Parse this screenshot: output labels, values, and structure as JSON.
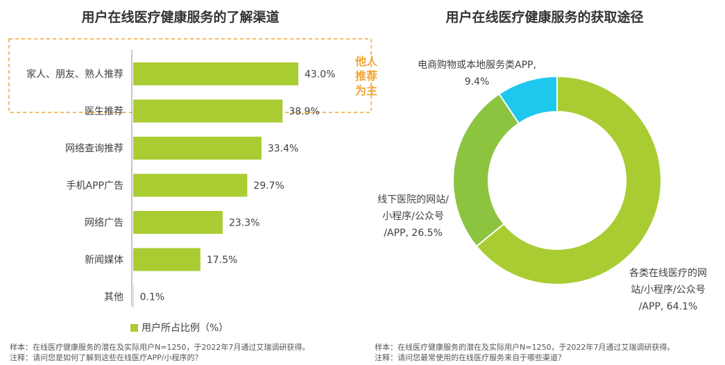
{
  "chart_data": [
    {
      "type": "bar",
      "orientation": "horizontal",
      "title": "用户在线医疗健康服务的了解渠道",
      "categories": [
        "家人、朋友、熟人推荐",
        "医生推荐",
        "网络查询推荐",
        "手机APP广告",
        "网络广告",
        "新闻媒体",
        "其他"
      ],
      "values": [
        43.0,
        38.9,
        33.4,
        29.7,
        23.3,
        17.5,
        0.1
      ],
      "value_labels": [
        "43.0%",
        "38.9%",
        "33.4%",
        "29.7%",
        "23.3%",
        "17.5%",
        "0.1%"
      ],
      "series": [
        {
          "name": "用户所占比例（%）",
          "values": [
            43.0,
            38.9,
            33.4,
            29.7,
            23.3,
            17.5,
            0.1
          ]
        }
      ],
      "xlim": [
        0,
        60
      ],
      "grid": false,
      "legend": "bottom",
      "color": "#AACC33",
      "annotation": {
        "text_lines": [
          "他人",
          "推荐",
          "为主"
        ],
        "highlighted_categories": [
          "家人、朋友、熟人推荐",
          "医生推荐"
        ],
        "color": "#F2A531"
      }
    },
    {
      "type": "pie",
      "variant": "donut",
      "title": "用户在线医疗健康服务的获取途径",
      "slices": [
        {
          "label_lines": [
            "各类在线医疗的网",
            "站/小程序/公众号",
            "/APP, 64.1%"
          ],
          "value": 64.1,
          "color": "#AACC33"
        },
        {
          "label_lines": [
            "线下医院的网站/",
            "小程序/公众号",
            "/APP, 26.5%"
          ],
          "value": 26.5,
          "color": "#8CC43F"
        },
        {
          "label_lines": [
            "电商购物或本地服务类APP,",
            "9.4%"
          ],
          "value": 9.4,
          "color": "#1DC7EE"
        }
      ],
      "start_angle_deg": 0,
      "direction": "clockwise"
    }
  ],
  "notes": {
    "left_sample": "样本：在线医疗健康服务的潜在及实际用户N=1250，于2022年7月通过艾瑞调研获得。",
    "left_question": "注释：请问您是如何了解到这些在线医疗APP/小程序的？",
    "right_sample": "样本：在线医疗健康服务的潜在及实际用户N=1250，于2022年7月通过艾瑞调研获得。",
    "right_question": "注释：请问您最常使用的在线医疗服务来自于哪些渠道？"
  }
}
